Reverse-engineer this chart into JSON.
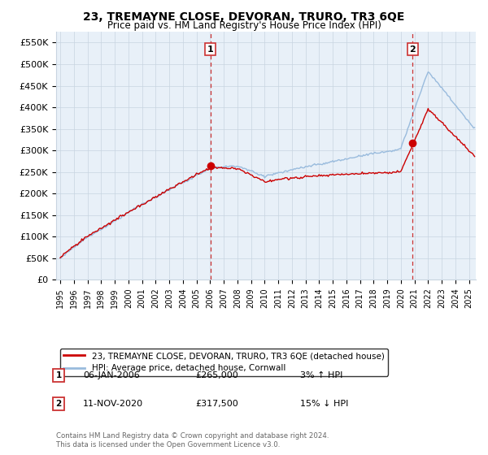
{
  "title": "23, TREMAYNE CLOSE, DEVORAN, TRURO, TR3 6QE",
  "subtitle": "Price paid vs. HM Land Registry's House Price Index (HPI)",
  "ylabel_ticks": [
    "£0",
    "£50K",
    "£100K",
    "£150K",
    "£200K",
    "£250K",
    "£300K",
    "£350K",
    "£400K",
    "£450K",
    "£500K",
    "£550K"
  ],
  "ytick_values": [
    0,
    50000,
    100000,
    150000,
    200000,
    250000,
    300000,
    350000,
    400000,
    450000,
    500000,
    550000
  ],
  "ylim": [
    0,
    575000
  ],
  "xlim_start": 1994.7,
  "xlim_end": 2025.5,
  "xtick_labels": [
    "1995",
    "1996",
    "1997",
    "1998",
    "1999",
    "2000",
    "2001",
    "2002",
    "2003",
    "2004",
    "2005",
    "2006",
    "2007",
    "2008",
    "2009",
    "2010",
    "2011",
    "2012",
    "2013",
    "2014",
    "2015",
    "2016",
    "2017",
    "2018",
    "2019",
    "2020",
    "2021",
    "2022",
    "2023",
    "2024",
    "2025"
  ],
  "purchase1_x": 2006.02,
  "purchase1_y": 265000,
  "purchase2_x": 2020.87,
  "purchase2_y": 317500,
  "annotation1_date": "06-JAN-2006",
  "annotation1_price": "£265,000",
  "annotation1_hpi": "3% ↑ HPI",
  "annotation2_date": "11-NOV-2020",
  "annotation2_price": "£317,500",
  "annotation2_hpi": "15% ↓ HPI",
  "legend_label1": "23, TREMAYNE CLOSE, DEVORAN, TRURO, TR3 6QE (detached house)",
  "legend_label2": "HPI: Average price, detached house, Cornwall",
  "footer": "Contains HM Land Registry data © Crown copyright and database right 2024.\nThis data is licensed under the Open Government Licence v3.0.",
  "line_color_property": "#cc0000",
  "line_color_hpi": "#99bbdd",
  "vline_color": "#cc3333",
  "plot_bg_color": "#e8f0f8",
  "background_color": "#ffffff",
  "grid_color": "#c8d4e0"
}
